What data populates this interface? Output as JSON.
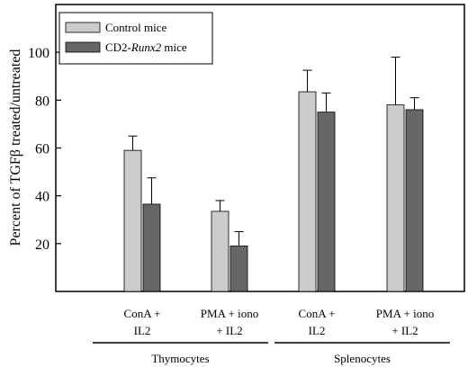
{
  "chart_data": {
    "type": "bar",
    "ylabel": "Percent of TGFβ treated/untreated",
    "ylim": [
      0,
      120
    ],
    "yticks": [
      20,
      40,
      60,
      80,
      100
    ],
    "grid": false,
    "legend_position": "top-left",
    "categories": [
      {
        "line1": "ConA +",
        "line2": "IL2"
      },
      {
        "line1": "PMA + iono",
        "line2": "+ IL2"
      },
      {
        "line1": "ConA +",
        "line2": "IL2"
      },
      {
        "line1": "PMA + iono",
        "line2": "+ IL2"
      }
    ],
    "groups": [
      {
        "label": "Thymocytes",
        "categories": [
          0,
          1
        ]
      },
      {
        "label": "Splenocytes",
        "categories": [
          2,
          3
        ]
      }
    ],
    "series": [
      {
        "name": "Control mice",
        "name_parts": [
          "Control mice"
        ],
        "color": "#cccccc",
        "values": [
          59,
          33.5,
          83.5,
          78
        ],
        "errors": [
          6,
          4.5,
          9,
          20
        ]
      },
      {
        "name": "CD2-Runx2 mice",
        "name_parts": [
          "CD2-",
          "Runx2",
          " mice"
        ],
        "color": "#666666",
        "values": [
          36.5,
          19,
          75,
          76
        ],
        "errors": [
          11,
          6,
          8,
          5
        ]
      }
    ]
  }
}
